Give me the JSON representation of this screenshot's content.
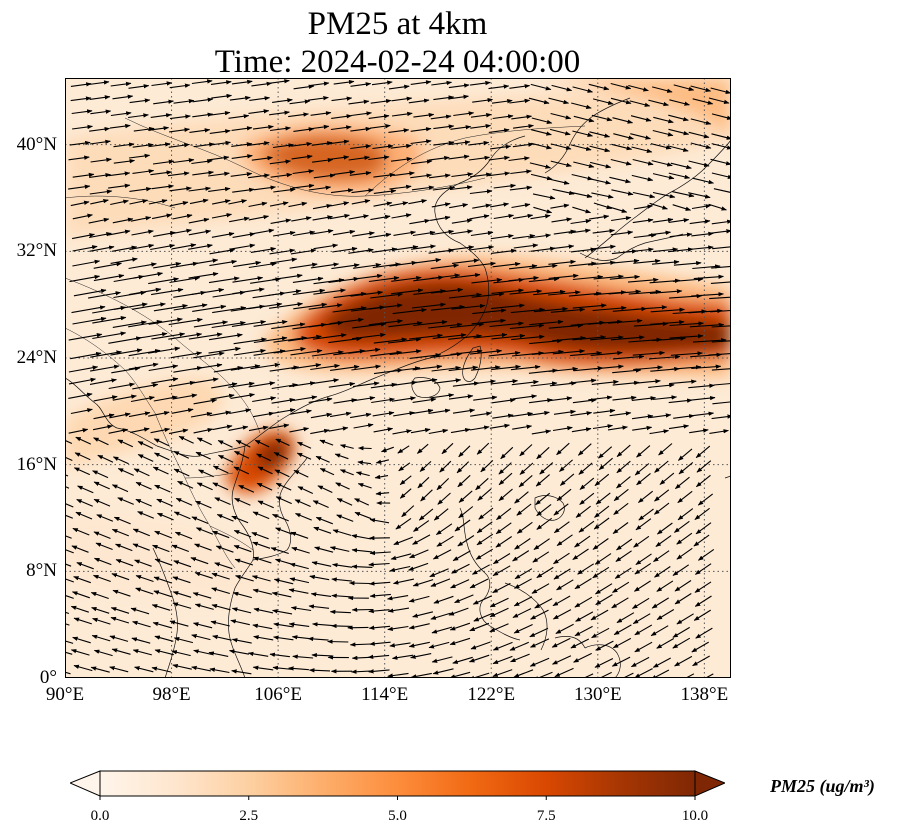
{
  "title": {
    "line1": "PM25 at 4km",
    "line2": "Time: 2024-02-24 04:00:00"
  },
  "map": {
    "extent": {
      "lon_min": 90,
      "lon_max": 140,
      "lat_min": 0,
      "lat_max": 45
    },
    "lat_ticks": [
      {
        "value": 0,
        "label": "0°"
      },
      {
        "value": 8,
        "label": "8°N"
      },
      {
        "value": 16,
        "label": "16°N"
      },
      {
        "value": 24,
        "label": "24°N"
      },
      {
        "value": 32,
        "label": "32°N"
      },
      {
        "value": 40,
        "label": "40°N"
      }
    ],
    "lon_ticks": [
      {
        "value": 90,
        "label": "90°E"
      },
      {
        "value": 98,
        "label": "98°E"
      },
      {
        "value": 106,
        "label": "106°E"
      },
      {
        "value": 114,
        "label": "114°E"
      },
      {
        "value": 122,
        "label": "122°E"
      },
      {
        "value": 130,
        "label": "130°E"
      },
      {
        "value": 138,
        "label": "138°E"
      }
    ],
    "gridlines": "dotted",
    "background_color": "#fdebd6",
    "wind_vectors": "black arrows (quiver)"
  },
  "colorbar": {
    "label": "PM25 (ug/m³)",
    "min": 0.0,
    "max": 10.0,
    "extend": "both",
    "ticks": [
      {
        "value": 0.0,
        "label": "0.0"
      },
      {
        "value": 2.5,
        "label": "2.5"
      },
      {
        "value": 5.0,
        "label": "5.0"
      },
      {
        "value": 7.5,
        "label": "7.5"
      },
      {
        "value": 10.0,
        "label": "10.0"
      }
    ],
    "colormap": [
      "#fff5eb",
      "#fee6ce",
      "#fdd0a2",
      "#fdae6b",
      "#fd8d3c",
      "#f16913",
      "#d94801",
      "#a63603",
      "#7f2704"
    ]
  }
}
